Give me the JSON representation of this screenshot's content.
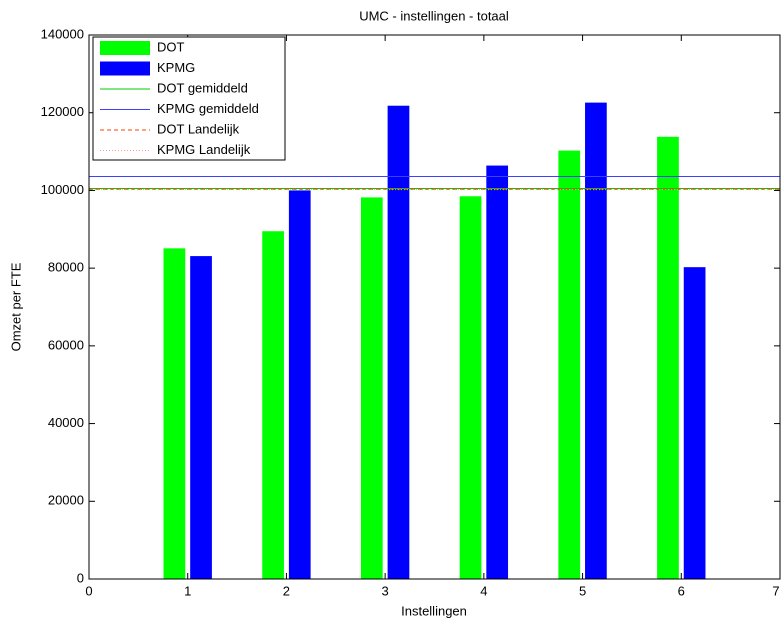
{
  "chart_data": {
    "type": "bar",
    "title": "UMC - instellingen - totaal",
    "x_label": "Instellingen",
    "y_label": "Omzet per FTE",
    "x": [
      1,
      2,
      3,
      4,
      5,
      6
    ],
    "series": [
      {
        "name": "DOT",
        "color": "#00ff00",
        "values": [
          85100,
          89500,
          98200,
          98500,
          110250,
          113800
        ]
      },
      {
        "name": "KPMG",
        "color": "#0000ff",
        "values": [
          83100,
          100000,
          121800,
          106400,
          122600,
          80250
        ]
      }
    ],
    "reference_lines": [
      {
        "name": "DOT gemiddeld",
        "color": "#00cc00",
        "style": "solid",
        "value": 100500
      },
      {
        "name": "KPMG gemiddeld",
        "color": "#4040ff",
        "style": "solid",
        "value": 103600
      },
      {
        "name": "DOT Landelijk",
        "color": "#ff4000",
        "style": "dashed",
        "value": 100300
      },
      {
        "name": "KPMG Landelijk",
        "color": "#ff9999",
        "style": "dotted",
        "value": 100200
      }
    ],
    "xlim": [
      0,
      7
    ],
    "xticks": [
      0,
      1,
      2,
      3,
      4,
      5,
      6,
      7
    ],
    "ylim": [
      0,
      140000
    ],
    "yticks": [
      0,
      20000,
      40000,
      60000,
      80000,
      100000,
      120000,
      140000
    ],
    "legend": "upper left"
  }
}
